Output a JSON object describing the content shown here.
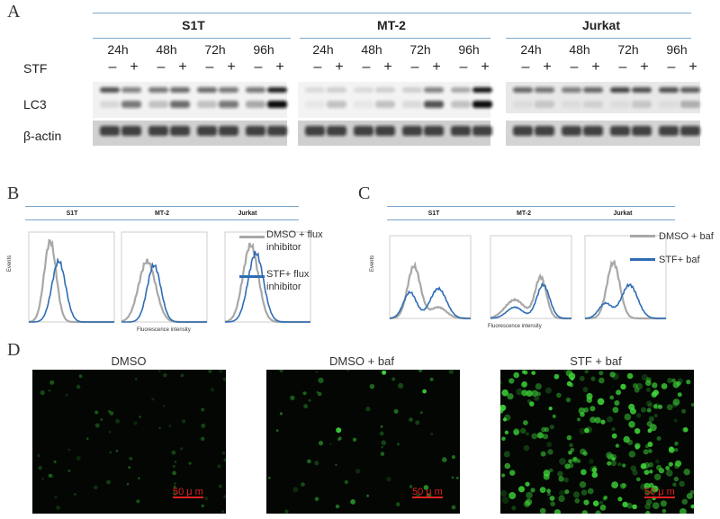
{
  "panels": {
    "a": "A",
    "b": "B",
    "c": "C",
    "d": "D"
  },
  "panelA": {
    "cell_lines": [
      "S1T",
      "MT-2",
      "Jurkat"
    ],
    "timepoints": [
      "24h",
      "48h",
      "72h",
      "96h"
    ],
    "row_labels": {
      "treatment": "STF",
      "lc3": "LC3",
      "actin": "β-actin"
    },
    "signs": [
      "–",
      "+"
    ]
  },
  "panelB": {
    "headers": [
      "S1T",
      "MT-2",
      "Jurkat"
    ],
    "y_label": "Events",
    "x_label": "Fluorescence intensity",
    "legend": [
      {
        "label": "DMSO + flux inhibitor",
        "line1": "DMSO + flux",
        "line2": "inhibitor",
        "color": "#a8a8a8"
      },
      {
        "label": "STF+ flux inhibitor",
        "line1": "STF+ flux",
        "line2": "inhibitor",
        "color": "#2e6db4"
      }
    ]
  },
  "panelC": {
    "headers": [
      "S1T",
      "MT-2",
      "Jurkat"
    ],
    "y_label": "Events",
    "x_label": "Fluorescence intensity",
    "legend": [
      {
        "label": "DMSO + baf",
        "color": "#a8a8a8"
      },
      {
        "label": "STF+ baf",
        "color": "#2e6db4"
      }
    ]
  },
  "panelD": {
    "titles": [
      "DMSO",
      "DMSO + baf",
      "STF + baf"
    ],
    "scale_bar": "50 μ m",
    "color_scalebar": "#e02020"
  }
}
